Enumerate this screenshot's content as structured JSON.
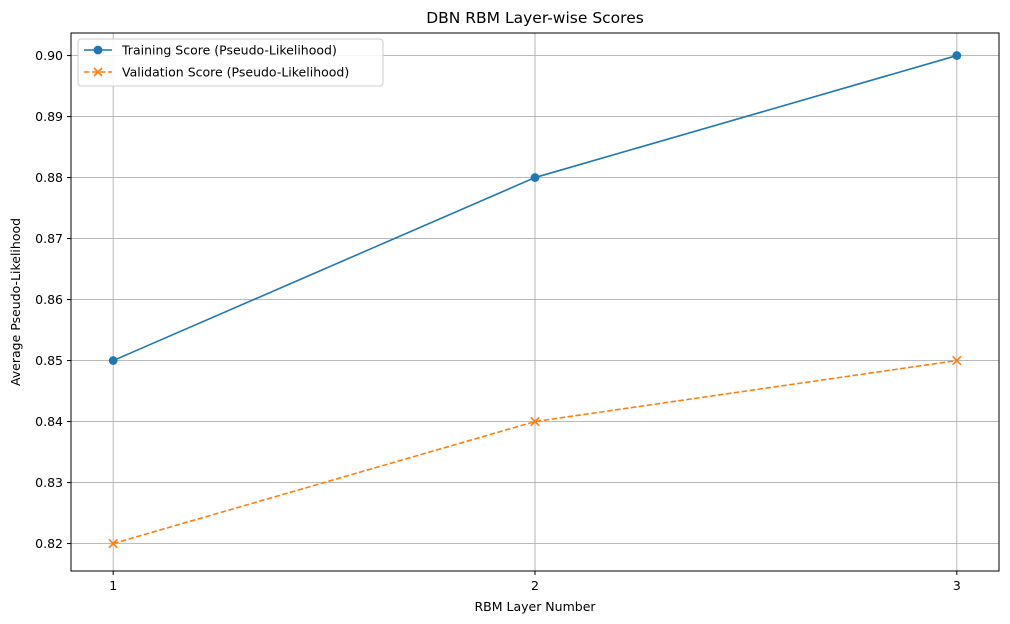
{
  "chart_data": {
    "type": "line",
    "title": "DBN RBM Layer-wise Scores",
    "xlabel": "RBM Layer Number",
    "ylabel": "Average Pseudo-Likelihood",
    "x": [
      1,
      2,
      3
    ],
    "xticks": [
      "1",
      "2",
      "3"
    ],
    "yticks": [
      "0.82",
      "0.83",
      "0.84",
      "0.85",
      "0.86",
      "0.87",
      "0.88",
      "0.89",
      "0.90"
    ],
    "xlim": [
      0.9,
      3.1
    ],
    "ylim": [
      0.8155,
      0.9037
    ],
    "grid": true,
    "legend_position": "top-left",
    "series": [
      {
        "name": "Training Score (Pseudo-Likelihood)",
        "values": [
          0.85,
          0.88,
          0.9
        ],
        "color": "#1f77b4",
        "marker": "circle",
        "line_style": "solid"
      },
      {
        "name": "Validation Score (Pseudo-Likelihood)",
        "values": [
          0.82,
          0.84,
          0.85
        ],
        "color": "#ff7f0e",
        "marker": "x",
        "line_style": "dashed"
      }
    ]
  }
}
